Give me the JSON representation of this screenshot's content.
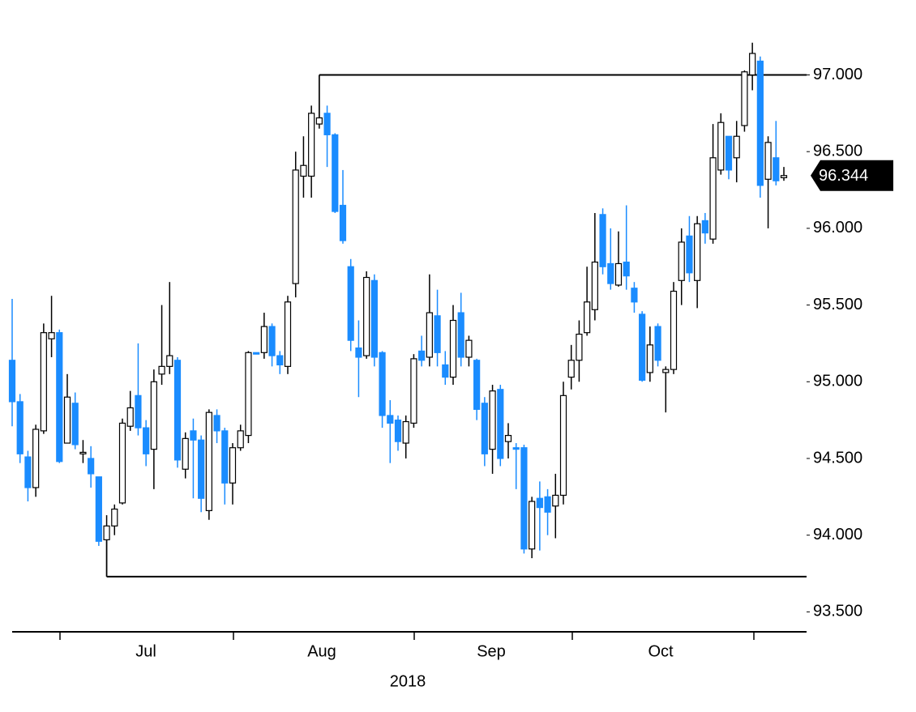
{
  "chart_data": {
    "type": "candlestick",
    "up_color": "#ffffff",
    "down_color": "#1a8cff",
    "open": [
      95.14,
      94.87,
      94.51,
      94.31,
      94.68,
      95.28,
      95.32,
      94.6,
      94.86,
      94.53,
      94.5,
      94.38,
      93.97,
      94.06,
      94.21,
      94.71,
      94.91,
      94.7,
      94.56,
      95.05,
      95.1,
      95.14,
      94.43,
      94.68,
      94.62,
      94.16,
      94.78,
      94.68,
      94.34,
      94.57,
      94.65,
      95.19,
      95.19,
      95.36,
      95.17,
      95.1,
      95.64,
      96.34,
      96.34,
      96.68,
      96.75,
      96.61,
      96.15,
      95.75,
      95.22,
      95.17,
      95.66,
      95.19,
      94.78,
      94.75,
      94.6,
      94.73,
      95.2,
      95.16,
      95.43,
      95.11,
      95.03,
      95.45,
      95.16,
      95.14,
      94.86,
      94.56,
      94.95,
      94.61,
      94.57,
      94.57,
      93.91,
      94.24,
      94.25,
      94.19,
      94.26,
      95.03,
      95.14,
      95.32,
      95.47,
      96.09,
      95.77,
      95.63,
      95.78,
      95.61,
      95.44,
      95.06,
      95.36,
      95.06,
      95.08,
      95.66,
      95.95,
      95.66,
      96.05,
      95.93,
      96.38,
      96.6,
      96.46,
      96.67,
      97.0,
      97.09,
      96.32,
      96.46,
      96.33
    ],
    "high": [
      95.54,
      94.92,
      94.55,
      94.72,
      95.38,
      95.56,
      95.34,
      95.05,
      94.93,
      94.62,
      94.58,
      94.38,
      94.13,
      94.2,
      94.76,
      94.94,
      95.25,
      94.75,
      95.08,
      95.5,
      95.65,
      95.16,
      94.67,
      94.76,
      94.65,
      94.82,
      94.82,
      94.7,
      94.6,
      94.72,
      95.2,
      95.19,
      95.45,
      95.38,
      95.2,
      95.56,
      96.5,
      96.6,
      96.8,
      97.0,
      96.8,
      96.62,
      96.38,
      95.8,
      95.4,
      95.72,
      95.7,
      95.2,
      94.88,
      94.78,
      94.78,
      95.18,
      95.3,
      95.7,
      95.6,
      95.2,
      95.5,
      95.58,
      95.3,
      95.15,
      94.9,
      94.98,
      94.98,
      94.73,
      94.6,
      94.59,
      94.25,
      94.35,
      94.3,
      94.4,
      95.0,
      95.24,
      95.4,
      95.75,
      96.1,
      96.13,
      96.0,
      95.98,
      96.15,
      95.65,
      95.46,
      95.36,
      95.38,
      95.1,
      95.65,
      96.0,
      96.08,
      96.08,
      96.1,
      96.68,
      96.75,
      96.6,
      96.7,
      97.03,
      97.21,
      97.12,
      96.6,
      96.7,
      96.4
    ],
    "low": [
      94.71,
      94.47,
      94.22,
      94.25,
      94.66,
      95.16,
      94.47,
      94.6,
      94.56,
      94.47,
      94.31,
      93.93,
      93.73,
      94.0,
      94.2,
      94.68,
      94.65,
      94.45,
      94.3,
      94.98,
      95.05,
      94.44,
      94.37,
      94.24,
      94.15,
      94.1,
      94.6,
      94.2,
      94.2,
      94.55,
      94.6,
      95.18,
      95.15,
      95.1,
      95.05,
      95.05,
      95.55,
      96.2,
      96.2,
      96.65,
      96.4,
      96.1,
      95.9,
      95.2,
      94.9,
      95.15,
      95.1,
      94.7,
      94.47,
      94.55,
      94.5,
      94.7,
      95.1,
      95.1,
      95.1,
      94.98,
      94.98,
      95.1,
      95.1,
      94.75,
      94.45,
      94.4,
      94.45,
      94.5,
      94.3,
      93.88,
      93.85,
      93.9,
      94.0,
      93.98,
      94.2,
      94.95,
      95.0,
      95.3,
      95.4,
      95.7,
      95.6,
      95.62,
      95.6,
      95.45,
      95.0,
      95.0,
      95.1,
      94.8,
      95.05,
      95.5,
      95.65,
      95.48,
      95.9,
      95.9,
      96.35,
      96.32,
      96.3,
      96.63,
      96.9,
      96.2,
      96.0,
      96.28,
      96.31
    ],
    "close": [
      94.87,
      94.53,
      94.31,
      94.69,
      95.32,
      95.32,
      94.48,
      94.9,
      94.59,
      94.54,
      94.4,
      93.96,
      94.06,
      94.17,
      94.73,
      94.83,
      94.7,
      94.53,
      95.0,
      95.1,
      95.17,
      94.49,
      94.63,
      94.62,
      94.24,
      94.8,
      94.68,
      94.34,
      94.57,
      94.68,
      95.19,
      95.18,
      95.36,
      95.17,
      95.11,
      95.52,
      96.38,
      96.41,
      96.75,
      96.72,
      96.61,
      96.11,
      95.92,
      95.27,
      95.16,
      95.68,
      95.16,
      94.78,
      94.73,
      94.61,
      94.74,
      95.15,
      95.14,
      95.45,
      95.19,
      95.03,
      95.4,
      95.16,
      95.27,
      94.82,
      94.53,
      94.94,
      94.5,
      94.65,
      94.56,
      93.91,
      94.22,
      94.18,
      94.15,
      94.26,
      94.91,
      95.14,
      95.31,
      95.52,
      95.78,
      95.75,
      95.64,
      95.77,
      95.69,
      95.52,
      95.01,
      95.24,
      95.14,
      95.08,
      95.59,
      95.91,
      95.71,
      96.03,
      95.97,
      96.46,
      96.69,
      96.38,
      96.6,
      97.02,
      97.14,
      96.28,
      96.56,
      96.31,
      96.344
    ],
    "hlines": [
      97,
      93.73
    ],
    "months": [
      "Jul",
      "Aug",
      "Sep",
      "Oct"
    ],
    "year": "2018",
    "ylim": [
      93.37,
      97.33
    ],
    "yticks": [
      {
        "value": 93.5,
        "label": "93.500"
      },
      {
        "value": 94,
        "label": "94.000"
      },
      {
        "value": 94.5,
        "label": "94.500"
      },
      {
        "value": 95,
        "label": "95.000"
      },
      {
        "value": 95.5,
        "label": "95.500"
      },
      {
        "value": 96,
        "label": "96.000"
      },
      {
        "value": 96.5,
        "label": "96.500"
      },
      {
        "value": 97,
        "label": "97.000"
      }
    ]
  }
}
